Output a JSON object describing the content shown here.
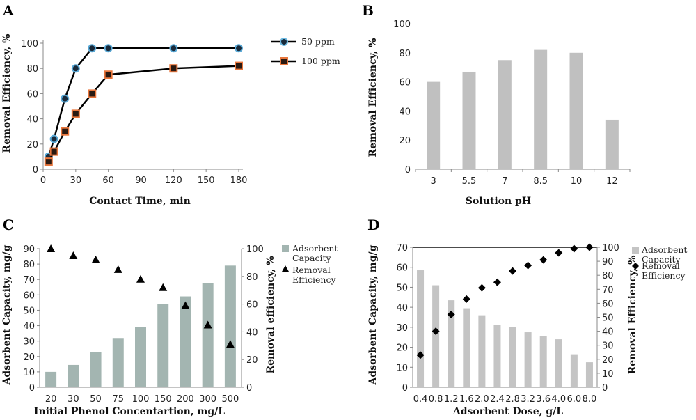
{
  "chart_data": [
    {
      "panel": "A",
      "type": "line",
      "xlabel": "Contact Time, min",
      "ylabel": "Removal Efficiency, %",
      "xlim": [
        0,
        180
      ],
      "ylim": [
        0,
        100
      ],
      "xticks": [
        0,
        30,
        60,
        90,
        120,
        150,
        180
      ],
      "yticks": [
        0,
        20,
        40,
        60,
        80,
        100
      ],
      "legend_position": "right",
      "series": [
        {
          "name": "50 ppm",
          "color": "#5aa9d6",
          "marker": "circle",
          "x": [
            5,
            10,
            20,
            30,
            45,
            60,
            120,
            180
          ],
          "y": [
            10,
            24,
            56,
            80,
            96,
            96,
            96,
            96
          ]
        },
        {
          "name": "100 ppm",
          "color": "#e8763c",
          "marker": "square",
          "x": [
            5,
            10,
            20,
            30,
            45,
            60,
            120,
            180
          ],
          "y": [
            6,
            14,
            30,
            44,
            60,
            75,
            80,
            82
          ]
        }
      ]
    },
    {
      "panel": "B",
      "type": "bar",
      "xlabel": "Solution pH",
      "ylabel": "Removal Efficiency, %",
      "ylim": [
        0,
        100
      ],
      "yticks": [
        0,
        20,
        40,
        60,
        80,
        100
      ],
      "categories": [
        "3",
        "5.5",
        "7",
        "8.5",
        "10",
        "12"
      ],
      "values": [
        60,
        67,
        75,
        82,
        80,
        34
      ],
      "color": "#c0c0c0"
    },
    {
      "panel": "C",
      "type": "bar",
      "xlabel": "Initial Phenol Concentartion, mg/L",
      "ylabel": "Adsorbent Capacity, mg/g",
      "ylabel2": "Removal efficiency, %",
      "ylim": [
        0,
        90
      ],
      "yticks": [
        0,
        10,
        20,
        30,
        40,
        50,
        60,
        70,
        80,
        90
      ],
      "y2lim": [
        0,
        100
      ],
      "y2ticks": [
        0,
        20,
        40,
        60,
        80,
        100
      ],
      "categories": [
        "20",
        "30",
        "50",
        "75",
        "100",
        "150",
        "200",
        "300",
        "500"
      ],
      "legend_position": "top-right",
      "series": [
        {
          "name": "Adsorbent Capacity",
          "kind": "bar",
          "color": "#a3b5b1",
          "values": [
            10,
            14.5,
            23,
            32,
            39,
            54,
            59,
            67.5,
            79
          ]
        },
        {
          "name": "Removal Efficiency",
          "kind": "marker",
          "marker": "triangle",
          "axis": "right",
          "color": "#000000",
          "values": [
            100,
            95,
            92,
            85,
            78,
            72,
            59,
            45,
            31
          ]
        }
      ]
    },
    {
      "panel": "D",
      "type": "bar",
      "xlabel": "Adsorbent Dose, g/L",
      "ylabel": "Adsorbent Capacity, mg/g",
      "ylabel2": "Removal Efficiency, %",
      "ylim": [
        0,
        70
      ],
      "yticks": [
        0,
        10,
        20,
        30,
        40,
        50,
        60,
        70
      ],
      "y2lim": [
        0,
        100
      ],
      "y2ticks": [
        0,
        10,
        20,
        30,
        40,
        50,
        60,
        70,
        80,
        90,
        100
      ],
      "categories": [
        "0.4",
        "0.8",
        "1.2",
        "1.6",
        "2.0",
        "2.4",
        "2.8",
        "3.2",
        "3.6",
        "4.0",
        "6.0",
        "8.0"
      ],
      "legend_position": "top-right",
      "series": [
        {
          "name": "Adsorbent Capacity",
          "kind": "bar",
          "color": "#c4c4c4",
          "values": [
            58.5,
            51,
            43.5,
            39.5,
            36,
            31,
            30,
            27.5,
            25.5,
            24,
            16.5,
            12.5
          ]
        },
        {
          "name": "Removal Efficiency",
          "kind": "marker",
          "marker": "diamond",
          "axis": "right",
          "color": "#000000",
          "values": [
            23,
            40,
            52,
            63,
            71,
            75,
            83,
            87,
            91,
            96,
            99,
            100
          ]
        }
      ]
    }
  ],
  "legend_labels": {
    "a_s1": "50 ppm",
    "a_s2": "100 ppm",
    "c_bar_l1": "Adsorbent",
    "c_bar_l2": "Capacity",
    "c_mk_l1": "Removal",
    "c_mk_l2": "Efficiency",
    "d_bar_l1": "Adsorbent",
    "d_bar_l2": "Capacity",
    "d_mk_l1": "Removal",
    "d_mk_l2": "Efficiency"
  }
}
